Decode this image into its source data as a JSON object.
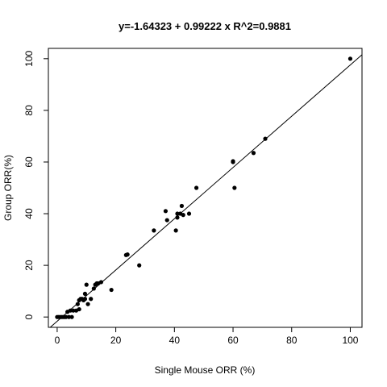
{
  "chart_data": {
    "type": "scatter",
    "title": "y=-1.64323 + 0.99222 x  R^2=0.9881",
    "xlabel": "Single Mouse ORR (%)",
    "ylabel": "Group ORR(%)",
    "xlim": [
      -3,
      104
    ],
    "ylim": [
      -4,
      104
    ],
    "xticks": [
      0,
      20,
      40,
      60,
      80,
      100
    ],
    "yticks": [
      0,
      20,
      40,
      60,
      80,
      100
    ],
    "regression": {
      "intercept": -1.64323,
      "slope": 0.99222
    },
    "points": [
      [
        0,
        0
      ],
      [
        0.5,
        0
      ],
      [
        1,
        0
      ],
      [
        1.5,
        0
      ],
      [
        2,
        0
      ],
      [
        2.5,
        0
      ],
      [
        3,
        0
      ],
      [
        3.5,
        2
      ],
      [
        4,
        0
      ],
      [
        4.5,
        2.5
      ],
      [
        5,
        0
      ],
      [
        5.5,
        2.5
      ],
      [
        6.5,
        2.5
      ],
      [
        7,
        5
      ],
      [
        7.5,
        3
      ],
      [
        7.5,
        6.5
      ],
      [
        8,
        7
      ],
      [
        8.5,
        7
      ],
      [
        9,
        6.5
      ],
      [
        9.5,
        7
      ],
      [
        9.5,
        9
      ],
      [
        10,
        12.5
      ],
      [
        10.5,
        5
      ],
      [
        11.5,
        7
      ],
      [
        12.5,
        11
      ],
      [
        13,
        12.5
      ],
      [
        13.5,
        13
      ],
      [
        14,
        13
      ],
      [
        15,
        13.5
      ],
      [
        18.5,
        10.5
      ],
      [
        23.5,
        24
      ],
      [
        24,
        24.2
      ],
      [
        28,
        20
      ],
      [
        33,
        33.5
      ],
      [
        37,
        41
      ],
      [
        37.5,
        37.5
      ],
      [
        40.5,
        33.5
      ],
      [
        41,
        40
      ],
      [
        41,
        38.5
      ],
      [
        42,
        40
      ],
      [
        42.5,
        43
      ],
      [
        43,
        39.5
      ],
      [
        45,
        40
      ],
      [
        47.5,
        50
      ],
      [
        60,
        60
      ],
      [
        60,
        60.3
      ],
      [
        60.5,
        50
      ],
      [
        67,
        63.5
      ],
      [
        71,
        69
      ],
      [
        100,
        100
      ]
    ]
  }
}
